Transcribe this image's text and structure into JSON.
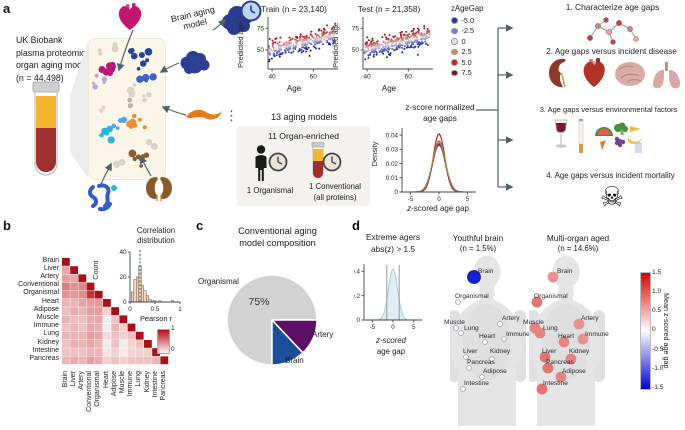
{
  "a": {
    "panel_label": "a",
    "intro_lines": [
      "UK Biobank",
      "plasma proteomic",
      "organ aging models",
      "(n = 44,498)"
    ],
    "brain_model_label": "Brain aging model",
    "ellipsis": "⋮",
    "train_title": "Train (n = 23,140)",
    "test_title": "Test (n = 21,358)",
    "scatter_xlabel": "Age",
    "scatter_ylabel": "Predicted age",
    "legend": {
      "title": "zAgeGap",
      "items": [
        {
          "label": "-5.0",
          "color": "#2c2fb0"
        },
        {
          "label": "-2.5",
          "color": "#8178d2"
        },
        {
          "label": "0",
          "color": "#eae6e3"
        },
        {
          "label": "2.5",
          "color": "#e2836d"
        },
        {
          "label": "5.0",
          "color": "#c8281b"
        },
        {
          "label": "7.5",
          "color": "#8f1010"
        }
      ]
    },
    "models_box": {
      "title": "13 aging models",
      "subtitle": "11 Organ-enriched",
      "organismal_label": "1 Organismal",
      "conventional_label": "1 Conventional",
      "conventional_sub": "(all proteins)"
    },
    "density_title_lines": [
      "z-score normalized",
      "age gaps"
    ],
    "density_ylabel": "Density",
    "density_xlabel_z": "z",
    "density_xlabel_rest": "-scored age gap",
    "goals": [
      "1. Characterize age gaps",
      "2. Age gaps versus incident disease",
      "3. Age gaps versus environmental factors",
      "4. Age gaps versus incident mortality"
    ],
    "skull_glyph": "☠",
    "sample_colors": {
      "plasma": "#f3b62c",
      "blood": "#a22f2f"
    }
  },
  "b": {
    "panel_label": "b",
    "organ_labels": [
      "Brain",
      "Liver",
      "Artery",
      "Conventional",
      "Organismal",
      "Heart",
      "Adipose",
      "Muscle",
      "Immune",
      "Lung",
      "Kidney",
      "Intestine",
      "Pancreas"
    ],
    "inset_title_lines": [
      "Correlation",
      "distribution"
    ],
    "inset_ylabel": "Count",
    "inset_xlabel": "Pearson r",
    "colorbar_ticks": [
      "1",
      "0"
    ]
  },
  "c": {
    "panel_label": "c",
    "title_lines": [
      "Conventional aging",
      "model composition"
    ],
    "pct_label": "75%",
    "slice_labels": [
      "Organismal",
      "Artery",
      "Brain"
    ]
  },
  "d": {
    "panel_label": "d",
    "extreme_title_lines": [
      "Extreme agers",
      "abs(z) > 1.5"
    ],
    "extreme_xlabel_lines": [
      "z-scored",
      "age gap"
    ],
    "maps": [
      {
        "title": "Youthful brain",
        "subtitle": "(n = 1.5%)"
      },
      {
        "title": "Multi-organ aged",
        "subtitle": "(n = 14.6%)"
      }
    ],
    "colorbar_label": "Mean z-scored age gap"
  },
  "chart_data": [
    {
      "id": "train_scatter",
      "type": "scatter",
      "title": "Train (n = 23,140)",
      "xlabel": "Age",
      "ylabel": "Predicted age",
      "xlim": [
        38,
        72
      ],
      "ylim": [
        28,
        88
      ],
      "xticks": [
        40,
        60
      ],
      "yticks": [
        50,
        75
      ],
      "trend": {
        "slope": 0.52,
        "intercept": 30,
        "noise_sd": 5.3
      },
      "n_shown": 340,
      "seed": 7,
      "color_scale": "zAgeGap: blue (-5.0) through white (0) to dark red (7.5)"
    },
    {
      "id": "test_scatter",
      "type": "scatter",
      "title": "Test (n = 21,358)",
      "xlabel": "Age",
      "ylabel": "Predicted age",
      "xlim": [
        38,
        72
      ],
      "ylim": [
        28,
        88
      ],
      "xticks": [
        40,
        60
      ],
      "yticks": [
        50,
        75
      ],
      "trend": {
        "slope": 0.52,
        "intercept": 30,
        "noise_sd": 5.3
      },
      "n_shown": 340,
      "seed": 13,
      "color_scale": "zAgeGap: blue (-5.0) through white (0) to dark red (7.5)"
    },
    {
      "id": "zagegap_legend",
      "type": "legend",
      "title": "zAgeGap",
      "entries": [
        -5.0,
        -2.5,
        0,
        2.5,
        5.0,
        7.5
      ]
    },
    {
      "id": "agegap_density",
      "type": "line",
      "title": "z-score normalized age gaps",
      "xlabel": "z-scored age gap",
      "ylabel": "Density",
      "xlim": [
        -6.5,
        6.5
      ],
      "ylim": [
        0,
        0.045
      ],
      "xticks": [
        -5,
        0,
        5
      ],
      "yticks": [
        0,
        0.01,
        0.02,
        0.03,
        0.04
      ],
      "curves": [
        {
          "color": "#b11226",
          "sigma": 1.0,
          "peak": 0.041
        },
        {
          "color": "#d4452c",
          "sigma": 1.06,
          "peak": 0.036
        },
        {
          "color": "#8e2a84",
          "sigma": 1.12,
          "peak": 0.034
        },
        {
          "color": "#5a3fa0",
          "sigma": 1.16,
          "peak": 0.033
        },
        {
          "color": "#2e3f9e",
          "sigma": 1.09,
          "peak": 0.034
        },
        {
          "color": "#c77f34",
          "sigma": 1.13,
          "peak": 0.035
        }
      ]
    },
    {
      "id": "correlation_heatmap",
      "type": "heatmap",
      "labels": [
        "Brain",
        "Liver",
        "Artery",
        "Conventional",
        "Organismal",
        "Heart",
        "Adipose",
        "Muscle",
        "Immune",
        "Lung",
        "Kidney",
        "Intestine",
        "Pancreas"
      ],
      "matrix": [
        [
          1
        ],
        [
          0.22,
          1
        ],
        [
          0.28,
          0.24,
          1
        ],
        [
          0.42,
          0.33,
          0.38,
          1
        ],
        [
          0.32,
          0.3,
          0.34,
          0.82,
          1
        ],
        [
          0.18,
          0.18,
          0.25,
          0.28,
          0.3,
          1
        ],
        [
          0.14,
          0.22,
          0.18,
          0.28,
          0.28,
          0.08,
          1
        ],
        [
          0.18,
          0.14,
          0.14,
          0.22,
          0.24,
          -0.02,
          0.12,
          1
        ],
        [
          0.13,
          0.18,
          0.13,
          0.24,
          0.2,
          -0.03,
          0.18,
          0.08,
          1
        ],
        [
          0.18,
          0.18,
          0.18,
          0.28,
          0.24,
          0.06,
          0.13,
          0.08,
          0.13,
          1
        ],
        [
          0.13,
          0.2,
          0.18,
          0.24,
          0.18,
          -0.02,
          0.13,
          -0.03,
          0.08,
          0.13,
          1
        ],
        [
          0.13,
          0.13,
          0.13,
          0.18,
          0.18,
          0.03,
          0.08,
          0.02,
          0.08,
          0.08,
          0.08,
          1
        ],
        [
          0.18,
          0.22,
          0.18,
          0.28,
          0.22,
          0.08,
          0.13,
          0.08,
          0.13,
          0.13,
          0.13,
          0.18,
          1
        ]
      ],
      "colorbar": {
        "label": "Pearson r",
        "ticks": [
          1,
          0
        ]
      }
    },
    {
      "id": "correlation_histogram",
      "type": "bar",
      "title": "Correlation distribution",
      "xlabel": "Pearson r",
      "ylabel": "Count",
      "xticks": [
        0,
        0.5,
        1
      ],
      "yticks": [
        0,
        20,
        40
      ],
      "bin_width": 0.05,
      "dashed_line_x": 0.2,
      "bins": [
        [
          0.05,
          8
        ],
        [
          0.1,
          18
        ],
        [
          0.15,
          20
        ],
        [
          0.2,
          29
        ],
        [
          0.25,
          13
        ],
        [
          0.3,
          9
        ],
        [
          0.35,
          5
        ],
        [
          0.4,
          2
        ],
        [
          0.45,
          1
        ],
        [
          0.5,
          1
        ],
        [
          0.6,
          1
        ],
        [
          0.85,
          1
        ]
      ]
    },
    {
      "id": "conventional_pie",
      "type": "pie",
      "title": "Conventional aging model composition",
      "slices": [
        {
          "label": "Organismal",
          "pct": 75,
          "color": "#d3d3d3"
        },
        {
          "label": "Artery",
          "pct": 13,
          "color": "#5c0e68"
        },
        {
          "label": "Brain",
          "pct": 12,
          "color": "#1a4f9c"
        }
      ]
    },
    {
      "id": "extreme_density",
      "type": "area",
      "title": "Extreme agers abs(z) > 1.5",
      "xlabel": "z-scored age gap",
      "ylabel": "Density",
      "xlim": [
        -7,
        7
      ],
      "ylim": [
        0,
        0.46
      ],
      "xticks": [
        -5,
        0,
        5
      ],
      "yticks": [
        0,
        0.2,
        0.4
      ],
      "sigma": 1.1,
      "peak": 0.42,
      "threshold_lines": [
        -1.5,
        1.5
      ],
      "fill": "#dfeef3",
      "stroke": "#a9cdd6"
    },
    {
      "id": "body_maps",
      "type": "body_map",
      "organs": [
        {
          "name": "Brain",
          "dot": [
            24,
            29
          ],
          "label": [
            28,
            20
          ]
        },
        {
          "name": "Organismal",
          "dot": [
            8,
            54
          ],
          "label": [
            5,
            45
          ]
        },
        {
          "name": "Muscle",
          "dot": [
            6,
            80
          ],
          "label": [
            -6,
            71
          ]
        },
        {
          "name": "Lung",
          "dot": [
            11,
            85
          ],
          "label": [
            14,
            77
          ]
        },
        {
          "name": "Artery",
          "dot": [
            50,
            76
          ],
          "label": [
            52,
            67
          ]
        },
        {
          "name": "Heart",
          "dot": [
            35,
            94
          ],
          "label": [
            29,
            85
          ]
        },
        {
          "name": "Immune",
          "dot": [
            54,
            91
          ],
          "label": [
            56,
            83
          ]
        },
        {
          "name": "Liver",
          "dot": [
            16,
            109
          ],
          "label": [
            13,
            100
          ]
        },
        {
          "name": "Kidney",
          "dot": [
            42,
            111
          ],
          "label": [
            40,
            100
          ]
        },
        {
          "name": "Pancreas",
          "dot": [
            19,
            120
          ],
          "label": [
            17,
            111
          ]
        },
        {
          "name": "Adipose",
          "dot": [
            32,
            129
          ],
          "label": [
            33,
            120
          ]
        },
        {
          "name": "Intestine",
          "dot": [
            13,
            141
          ],
          "label": [
            14,
            132
          ]
        }
      ],
      "maps": [
        {
          "name": "Youthful brain",
          "n_pct": 1.5,
          "values": {
            "Brain": -1.5,
            "Organismal": 0,
            "Muscle": 0,
            "Lung": 0,
            "Artery": 0,
            "Heart": 0,
            "Immune": 0,
            "Liver": 0,
            "Kidney": 0,
            "Pancreas": 0,
            "Adipose": 0,
            "Intestine": 0
          }
        },
        {
          "name": "Multi-organ aged",
          "n_pct": 14.6,
          "values": {
            "Brain": 0.7,
            "Organismal": 0.9,
            "Muscle": 0.8,
            "Lung": 0.8,
            "Artery": 0.7,
            "Heart": 0.8,
            "Immune": 0.7,
            "Liver": 0.9,
            "Kidney": 0.8,
            "Pancreas": 0.9,
            "Adipose": 0.8,
            "Intestine": 0.9
          }
        }
      ],
      "colorbar": {
        "label": "Mean z-scored age gap",
        "ticks": [
          "1.5",
          "1.0",
          "0.5",
          "0",
          "-0.5",
          "-1.0",
          "-1.5"
        ],
        "max_color": "#dd1111",
        "min_color": "#1111dd"
      }
    }
  ]
}
